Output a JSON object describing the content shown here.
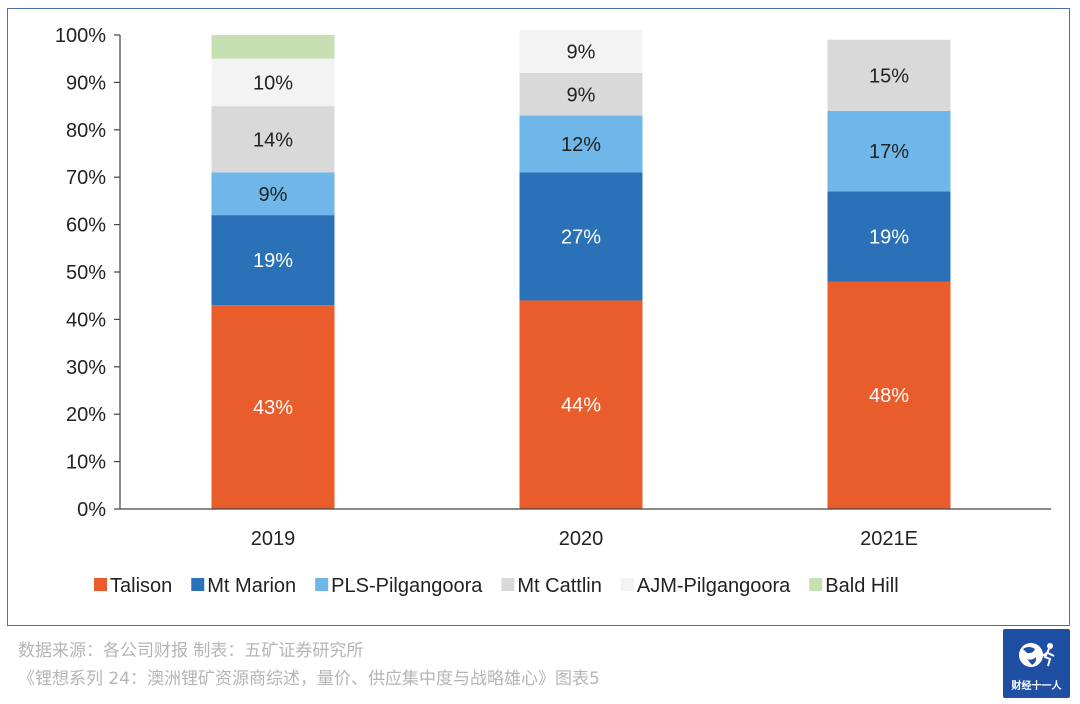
{
  "chart_data": {
    "type": "bar",
    "stacked": true,
    "categories": [
      "2019",
      "2020",
      "2021E"
    ],
    "series": [
      {
        "name": "Talison",
        "color": "#e95c2c",
        "values": [
          43,
          44,
          48
        ],
        "labels": [
          "43%",
          "44%",
          "48%"
        ],
        "label_color": "#ffffff"
      },
      {
        "name": "Mt Marion",
        "color": "#2a71b8",
        "values": [
          19,
          27,
          19
        ],
        "labels": [
          "19%",
          "27%",
          "19%"
        ],
        "label_color": "#ffffff"
      },
      {
        "name": "PLS-Pilgangoora",
        "color": "#6fb7e8",
        "values": [
          9,
          12,
          17
        ],
        "labels": [
          "9%",
          "12%",
          "17%"
        ],
        "label_color": "#222222"
      },
      {
        "name": "Mt Cattlin",
        "color": "#d9d9d9",
        "values": [
          14,
          9,
          15
        ],
        "labels": [
          "14%",
          "9%",
          "15%"
        ],
        "label_color": "#222222"
      },
      {
        "name": "AJM-Pilgangoora",
        "color": "#f3f3f3",
        "values": [
          10,
          9,
          0
        ],
        "labels": [
          "10%",
          "9%",
          ""
        ],
        "label_color": "#222222"
      },
      {
        "name": "Bald Hill",
        "color": "#c6e0b4",
        "values": [
          5,
          0,
          0
        ],
        "labels": [
          "",
          "",
          ""
        ],
        "label_color": "#222222"
      }
    ],
    "ylim": [
      0,
      100
    ],
    "yticks": [
      "0%",
      "10%",
      "20%",
      "30%",
      "40%",
      "50%",
      "60%",
      "70%",
      "80%",
      "90%",
      "100%"
    ],
    "grid": false,
    "legend_position": "bottom"
  },
  "footer": {
    "source": "数据来源：各公司财报  制表：五矿证券研究所",
    "caption": "《锂想系列 24：澳洲锂矿资源商综述，量价、供应集中度与战略雄心》图表5"
  },
  "logo": {
    "text": "财经十一人"
  }
}
